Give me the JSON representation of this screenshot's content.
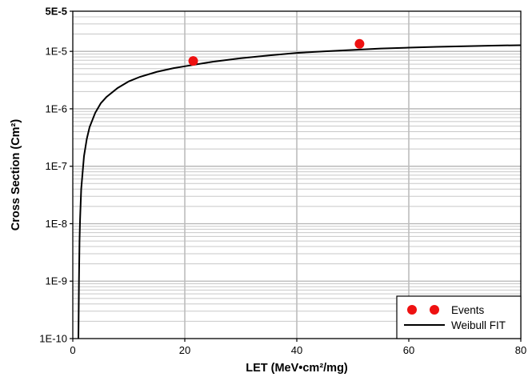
{
  "chart_data": {
    "type": "scatter",
    "xlabel": "LET (MeV•cm²/mg)",
    "ylabel": "Cross Section (Cm²)",
    "xlim": [
      0,
      80
    ],
    "ylim": [
      1e-10,
      5e-05
    ],
    "yscale": "log",
    "grid": true,
    "x_ticks": [
      0,
      20,
      40,
      60,
      80
    ],
    "x_tick_labels": [
      "0",
      "20",
      "40",
      "60",
      "80"
    ],
    "y_ticks": [
      1e-10,
      1e-09,
      1e-08,
      1e-07,
      1e-06,
      1e-05,
      5e-05
    ],
    "y_tick_labels": [
      "1E-10",
      "1E-9",
      "1E-8",
      "1E-7",
      "1E-6",
      "1E-5",
      "5E-5"
    ],
    "legend_position": "bottom-right",
    "series": [
      {
        "name": "Events",
        "kind": "scatter",
        "color": "#ee1111",
        "points": [
          {
            "x": 21.5,
            "y": 6.8e-06
          },
          {
            "x": 51.2,
            "y": 1.35e-05
          }
        ]
      },
      {
        "name": "Weibull FIT",
        "kind": "line",
        "color": "#000000",
        "points": [
          {
            "x": 1.0,
            "y": 1e-10
          },
          {
            "x": 1.05,
            "y": 3e-10
          },
          {
            "x": 1.1,
            "y": 1e-09
          },
          {
            "x": 1.2,
            "y": 5e-09
          },
          {
            "x": 1.3,
            "y": 1.2e-08
          },
          {
            "x": 1.5,
            "y": 4e-08
          },
          {
            "x": 2.0,
            "y": 1.5e-07
          },
          {
            "x": 2.5,
            "y": 3e-07
          },
          {
            "x": 3.0,
            "y": 4.8e-07
          },
          {
            "x": 4.0,
            "y": 8.5e-07
          },
          {
            "x": 5.0,
            "y": 1.25e-06
          },
          {
            "x": 6.0,
            "y": 1.6e-06
          },
          {
            "x": 8.0,
            "y": 2.3e-06
          },
          {
            "x": 10.0,
            "y": 3e-06
          },
          {
            "x": 12.0,
            "y": 3.6e-06
          },
          {
            "x": 15.0,
            "y": 4.4e-06
          },
          {
            "x": 18.0,
            "y": 5.1e-06
          },
          {
            "x": 20.0,
            "y": 5.5e-06
          },
          {
            "x": 25.0,
            "y": 6.6e-06
          },
          {
            "x": 30.0,
            "y": 7.6e-06
          },
          {
            "x": 35.0,
            "y": 8.5e-06
          },
          {
            "x": 40.0,
            "y": 9.4e-06
          },
          {
            "x": 45.0,
            "y": 1e-05
          },
          {
            "x": 50.0,
            "y": 1.06e-05
          },
          {
            "x": 55.0,
            "y": 1.12e-05
          },
          {
            "x": 60.0,
            "y": 1.16e-05
          },
          {
            "x": 65.0,
            "y": 1.2e-05
          },
          {
            "x": 70.0,
            "y": 1.23e-05
          },
          {
            "x": 75.0,
            "y": 1.26e-05
          },
          {
            "x": 80.0,
            "y": 1.28e-05
          }
        ]
      }
    ]
  }
}
